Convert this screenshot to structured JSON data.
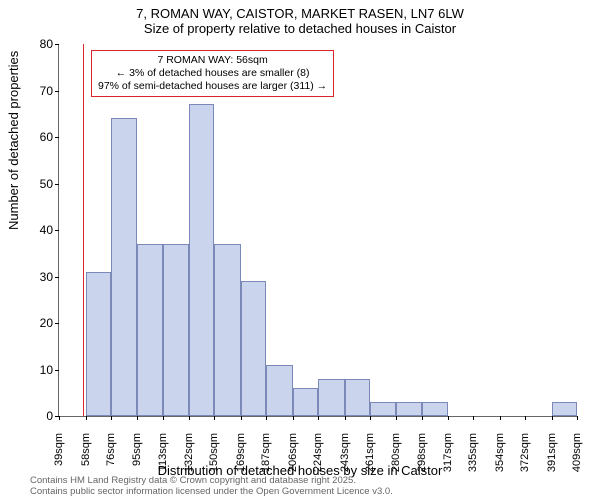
{
  "chart": {
    "type": "histogram",
    "title_line1": "7, ROMAN WAY, CAISTOR, MARKET RASEN, LN7 6LW",
    "title_line2": "Size of property relative to detached houses in Caistor",
    "ylabel": "Number of detached properties",
    "xlabel": "Distribution of detached houses by size in Caistor",
    "ylim": [
      0,
      80
    ],
    "ytick_step": 10,
    "yticks": [
      0,
      10,
      20,
      30,
      40,
      50,
      60,
      70,
      80
    ],
    "xticks": [
      "39sqm",
      "58sqm",
      "76sqm",
      "95sqm",
      "113sqm",
      "132sqm",
      "150sqm",
      "169sqm",
      "187sqm",
      "206sqm",
      "224sqm",
      "243sqm",
      "261sqm",
      "280sqm",
      "298sqm",
      "317sqm",
      "335sqm",
      "354sqm",
      "372sqm",
      "391sqm",
      "409sqm"
    ],
    "bin_edges_sqm": [
      39,
      58,
      76,
      95,
      113,
      132,
      150,
      169,
      187,
      206,
      224,
      243,
      261,
      280,
      298,
      317,
      335,
      354,
      372,
      391,
      409
    ],
    "bar_values": [
      0,
      31,
      64,
      37,
      37,
      67,
      37,
      29,
      11,
      6,
      8,
      8,
      3,
      3,
      3,
      0,
      0,
      0,
      0,
      3
    ],
    "bar_color": "#cad4ec",
    "bar_border_color": "#7a89b8",
    "background_color": "#ffffff",
    "axis_color": "#666666",
    "marker_value_sqm": 56,
    "marker_color": "#d8262c",
    "annotation": {
      "line1": "7 ROMAN WAY: 56sqm",
      "line2": "← 3% of detached houses are smaller (8)",
      "line3": "97% of semi-detached houses are larger (311) →",
      "border_color": "#d8262c",
      "fontsize": 10.5
    },
    "title_fontsize": 13,
    "label_fontsize": 13,
    "tick_fontsize": 12
  },
  "footer": {
    "line1": "Contains HM Land Registry data © Crown copyright and database right 2025.",
    "line2": "Contains public sector information licensed under the Open Government Licence v3.0.",
    "color": "#666666",
    "fontsize": 9.5
  }
}
